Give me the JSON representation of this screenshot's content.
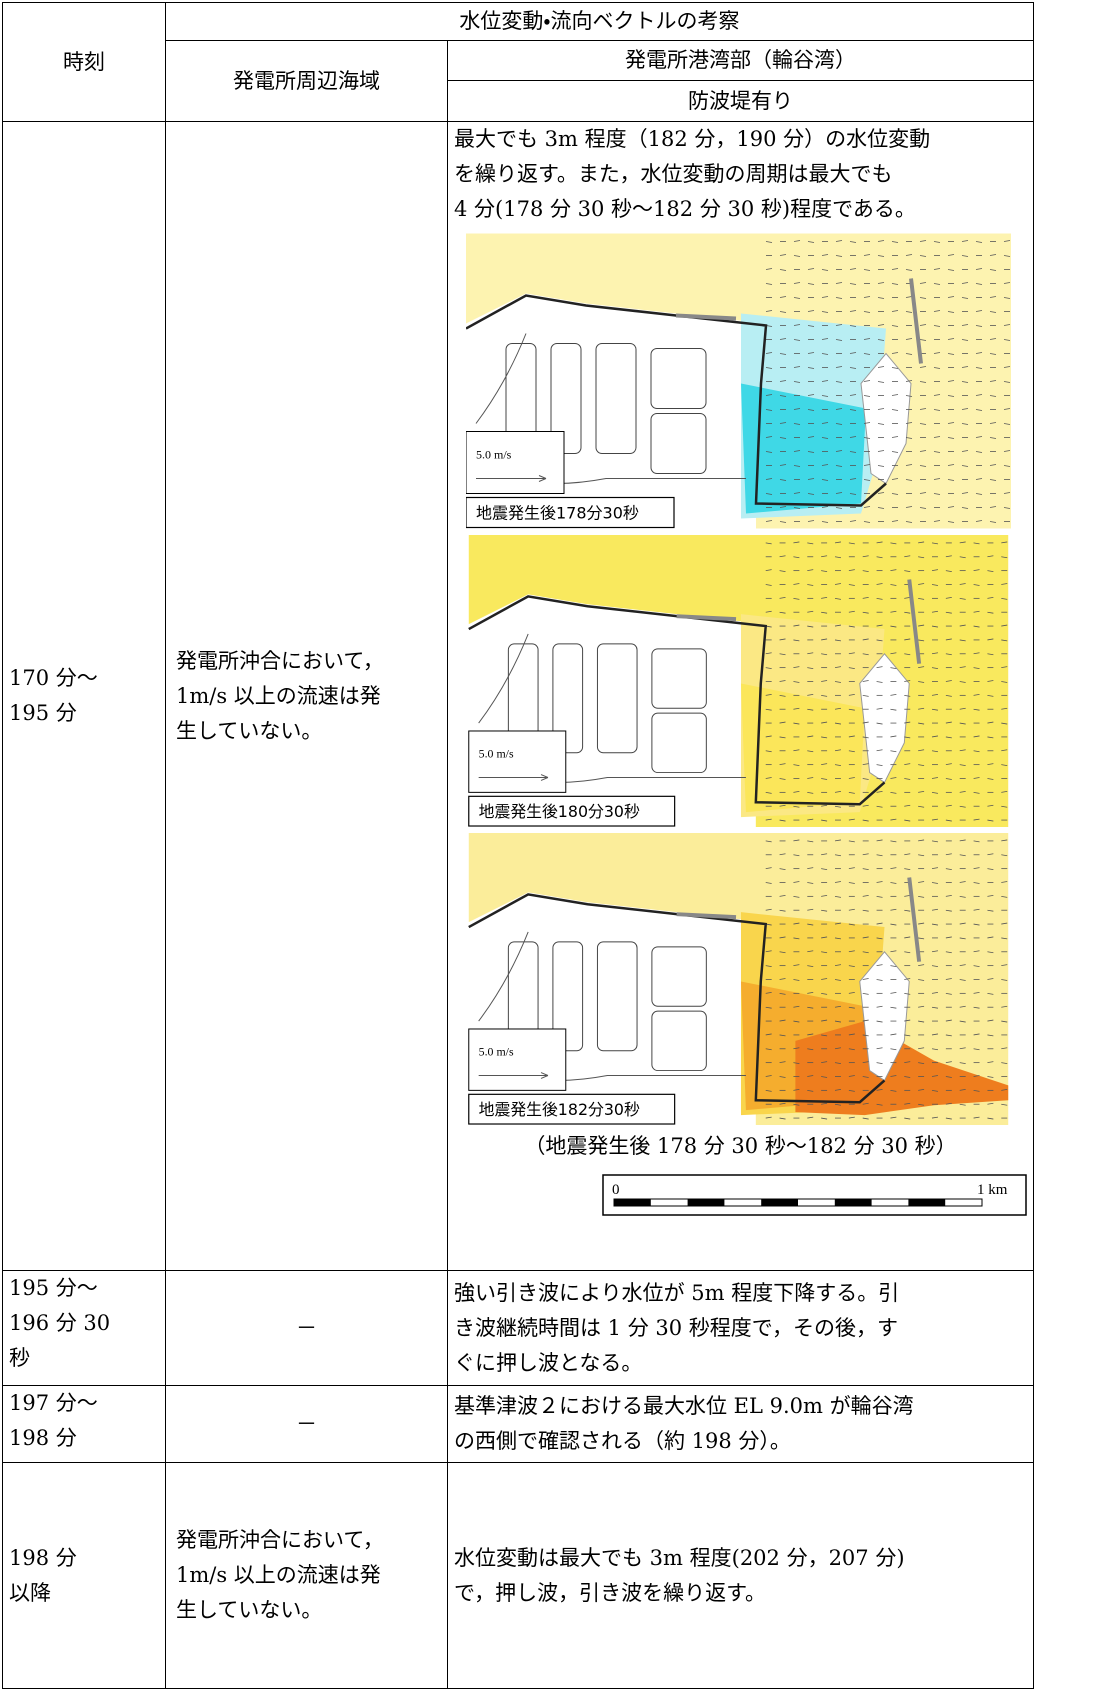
{
  "table": {
    "header": {
      "time": "時刻",
      "title": "水位変動・流向ベクトルの考察",
      "area": "発電所周辺海域",
      "harbor": "発電所港湾部（輪谷湾）",
      "condition": "防波堤有り"
    },
    "rows": [
      {
        "time": [
          "170 分～",
          "195 分"
        ],
        "area": [
          "発電所沖合において，",
          "1m/s 以上の流速は発",
          "生していない。"
        ],
        "harbor": [
          "最大でも 3m 程度（182 分，190 分）の水位変動",
          "を繰り返す。また，水位変動の周期は最大でも",
          "4 分(178 分 30 秒～182 分 30 秒)程度である。"
        ],
        "figures": [
          {
            "scale": "5.0 m/s",
            "caption": "地震発生後178分30秒"
          },
          {
            "scale": "5.0 m/s",
            "caption": "地震発生後180分30秒"
          },
          {
            "scale": "5.0 m/s",
            "caption": "地震発生後182分30秒"
          }
        ],
        "figure_note": "（地震発生後 178 分 30 秒～182 分 30 秒）",
        "scale_bar": {
          "start": "0",
          "end": "1 km"
        }
      },
      {
        "time": [
          "195 分～",
          "196 分 30",
          "秒"
        ],
        "area": [
          "－"
        ],
        "harbor": [
          "強い引き波により水位が 5m 程度下降する。引",
          "き波継続時間は 1 分 30 秒程度で，その後，す",
          "ぐに押し波となる。"
        ]
      },
      {
        "time": [
          "197 分～",
          "198 分"
        ],
        "area": [
          "－"
        ],
        "harbor": [
          "基準津波２における最大水位 EL 9.0m が輪谷湾",
          "の西側で確認される（約 198 分）。"
        ]
      },
      {
        "time": [
          "198 分",
          "以降"
        ],
        "area": [
          "発電所沖合において，",
          "1m/s 以上の流速は発",
          "生していない。"
        ],
        "harbor": [
          "水位変動は最大でも 3m 程度(202 分，207 分)",
          "で，押し波，引き波を繰り返す。"
        ]
      }
    ]
  }
}
